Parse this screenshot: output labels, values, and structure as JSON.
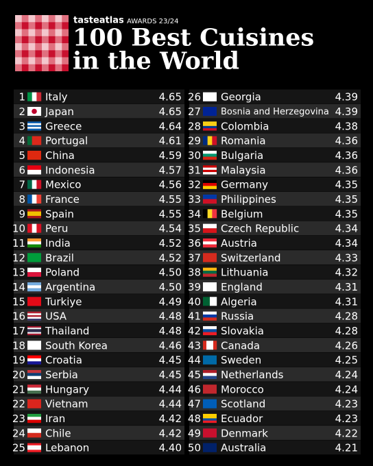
{
  "header": {
    "brand": "tasteatlas",
    "awards": "AWARDS 23/24",
    "title_line1": "100 Best Cuisines",
    "title_line2": "in the World"
  },
  "table": {
    "rows": [
      [
        1,
        "Italy",
        "4.65"
      ],
      [
        2,
        "Japan",
        "4.65"
      ],
      [
        3,
        "Greece",
        "4.64"
      ],
      [
        4,
        "Portugal",
        "4.61"
      ],
      [
        5,
        "China",
        "4.59"
      ],
      [
        6,
        "Indonesia",
        "4.57"
      ],
      [
        7,
        "Mexico",
        "4.56"
      ],
      [
        8,
        "France",
        "4.55"
      ],
      [
        9,
        "Spain",
        "4.55"
      ],
      [
        10,
        "Peru",
        "4.54"
      ],
      [
        11,
        "India",
        "4.52"
      ],
      [
        12,
        "Brazil",
        "4.52"
      ],
      [
        13,
        "Poland",
        "4.50"
      ],
      [
        14,
        "Argentina",
        "4.50"
      ],
      [
        15,
        "Turkiye",
        "4.49"
      ],
      [
        16,
        "USA",
        "4.48"
      ],
      [
        17,
        "Thailand",
        "4.48"
      ],
      [
        18,
        "South Korea",
        "4.46"
      ],
      [
        19,
        "Croatia",
        "4.45"
      ],
      [
        20,
        "Serbia",
        "4.45"
      ],
      [
        21,
        "Hungary",
        "4.44"
      ],
      [
        22,
        "Vietnam",
        "4.44"
      ],
      [
        23,
        "Iran",
        "4.42"
      ],
      [
        24,
        "Chile",
        "4.42"
      ],
      [
        25,
        "Lebanon",
        "4.40"
      ],
      [
        26,
        "Georgia",
        "4.39"
      ],
      [
        27,
        "Bosnia and Herzegovina",
        "4.39"
      ],
      [
        28,
        "Colombia",
        "4.38"
      ],
      [
        29,
        "Romania",
        "4.36"
      ],
      [
        30,
        "Bulgaria",
        "4.36"
      ],
      [
        31,
        "Malaysia",
        "4.36"
      ],
      [
        32,
        "Germany",
        "4.35"
      ],
      [
        33,
        "Philippines",
        "4.35"
      ],
      [
        34,
        "Belgium",
        "4.35"
      ],
      [
        35,
        "Czech Republic",
        "4.34"
      ],
      [
        36,
        "Austria",
        "4.34"
      ],
      [
        37,
        "Switzerland",
        "4.33"
      ],
      [
        38,
        "Lithuania",
        "4.32"
      ],
      [
        39,
        "England",
        "4.31"
      ],
      [
        40,
        "Algeria",
        "4.31"
      ],
      [
        41,
        "Russia",
        "4.28"
      ],
      [
        42,
        "Slovakia",
        "4.28"
      ],
      [
        43,
        "Canada",
        "4.26"
      ],
      [
        44,
        "Sweden",
        "4.25"
      ],
      [
        45,
        "Netherlands",
        "4.24"
      ],
      [
        46,
        "Morocco",
        "4.24"
      ],
      [
        47,
        "Scotland",
        "4.23"
      ],
      [
        48,
        "Ecuador",
        "4.23"
      ],
      [
        49,
        "Denmark",
        "4.22"
      ],
      [
        50,
        "Australia",
        "4.21"
      ]
    ]
  }
}
